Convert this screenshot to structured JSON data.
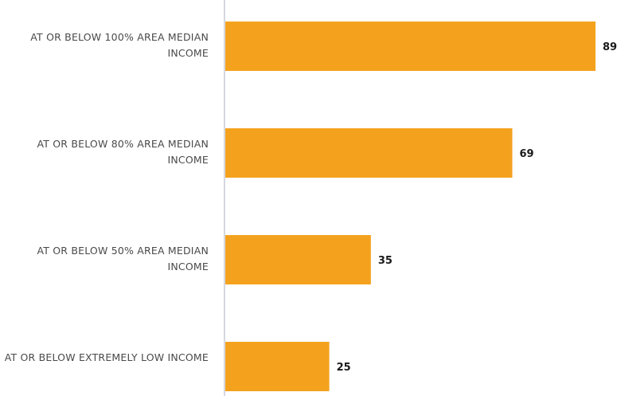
{
  "chart_data": {
    "type": "bar",
    "orientation": "horizontal",
    "categories": [
      "AT OR BELOW 100% AREA MEDIAN INCOME",
      "AT OR BELOW 80% AREA MEDIAN INCOME",
      "AT OR BELOW 50% AREA MEDIAN INCOME",
      "AT OR BELOW EXTREMELY LOW INCOME"
    ],
    "values": [
      89,
      69,
      35,
      25
    ],
    "title": "",
    "xlabel": "",
    "ylabel": "",
    "xlim": [
      0,
      89
    ],
    "grid": false,
    "legend": "none",
    "bar_color": "#F4A21E",
    "axis_color": "#C9CCD6",
    "data_labels": [
      "89",
      "69",
      "35",
      "25"
    ]
  }
}
